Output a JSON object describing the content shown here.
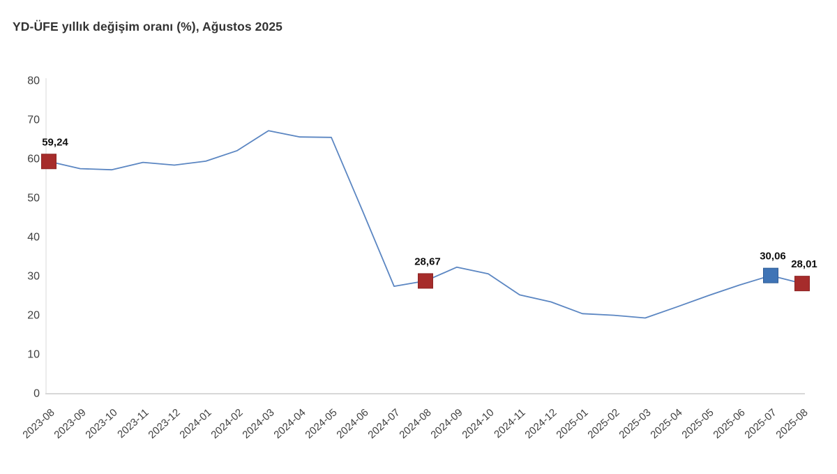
{
  "title": "YD-ÜFE yıllık değişim oranı (%), Ağustos 2025",
  "colors": {
    "line": "#5b86c2",
    "marker_red": "#a62c2b",
    "marker_red_border": "#8c2423",
    "marker_blue": "#3f74b6",
    "marker_blue_border": "#2f5c96",
    "axis": "#d8d8d8",
    "tick_text": "#404040",
    "title_text": "#333333",
    "label_text": "#0f0f0f",
    "background": "#ffffff"
  },
  "chart_data": {
    "type": "line",
    "title": "YD-ÜFE yıllık değişim oranı (%), Ağustos 2025",
    "xlabel": "",
    "ylabel": "",
    "x": [
      "2023-08",
      "2023-09",
      "2023-10",
      "2023-11",
      "2023-12",
      "2024-01",
      "2024-02",
      "2024-03",
      "2024-04",
      "2024-05",
      "2024-06",
      "2024-07",
      "2024-08",
      "2024-09",
      "2024-10",
      "2024-11",
      "2024-12",
      "2025-01",
      "2025-02",
      "2025-03",
      "2025-04",
      "2025-05",
      "2025-06",
      "2025-07",
      "2025-08"
    ],
    "values": [
      59.24,
      57.4,
      57.1,
      59.0,
      58.3,
      59.3,
      62.0,
      67.1,
      65.5,
      65.4,
      46.5,
      27.3,
      28.67,
      32.2,
      30.5,
      25.1,
      23.3,
      20.3,
      19.9,
      19.2,
      22.0,
      24.9,
      27.6,
      30.06,
      28.01
    ],
    "ylim": [
      0,
      80
    ],
    "yticks": [
      0,
      10,
      20,
      30,
      40,
      50,
      60,
      70,
      80
    ],
    "grid": false,
    "legend": "none",
    "annotations": [
      {
        "x": "2023-08",
        "value": 59.24,
        "label": "59,24",
        "marker": "red"
      },
      {
        "x": "2024-08",
        "value": 28.67,
        "label": "28,67",
        "marker": "red"
      },
      {
        "x": "2025-07",
        "value": 30.06,
        "label": "30,06",
        "marker": "blue"
      },
      {
        "x": "2025-08",
        "value": 28.01,
        "label": "28,01",
        "marker": "red"
      }
    ]
  }
}
